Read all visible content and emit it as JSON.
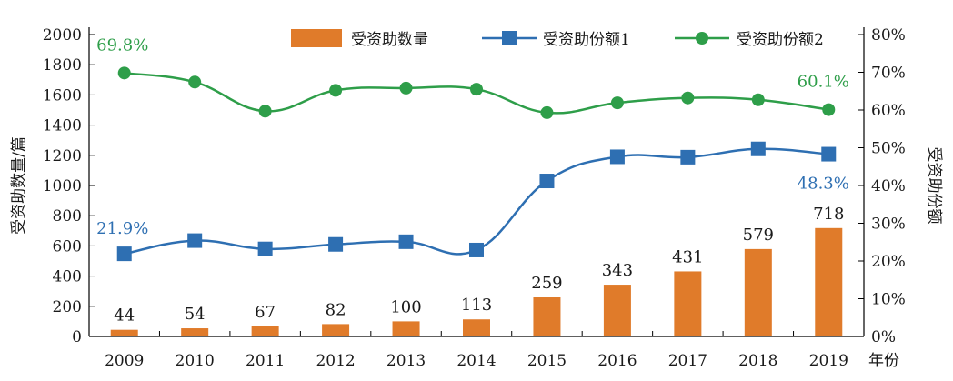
{
  "chart_data": {
    "type": "bar+line",
    "categories": [
      "2009",
      "2010",
      "2011",
      "2012",
      "2013",
      "2014",
      "2015",
      "2016",
      "2017",
      "2018",
      "2019"
    ],
    "x_unit_label": "年份",
    "bars": {
      "name": "受资助数量",
      "values": [
        44,
        54,
        67,
        82,
        100,
        113,
        259,
        343,
        431,
        579,
        718
      ],
      "data_labels": [
        "44",
        "54",
        "67",
        "82",
        "100",
        "113",
        "259",
        "343",
        "431",
        "579",
        "718"
      ],
      "color": "#e07b2a"
    },
    "lines": [
      {
        "name": "受资助份额1",
        "marker": "square",
        "color": "#2e6fb2",
        "values": [
          21.9,
          25.4,
          23.2,
          24.4,
          25.1,
          22.9,
          41.2,
          47.6,
          47.5,
          49.7,
          48.3
        ],
        "annotations": [
          {
            "index": 0,
            "text": "21.9%"
          },
          {
            "index": 10,
            "text": "48.3%"
          }
        ]
      },
      {
        "name": "受资助份额2",
        "marker": "circle",
        "color": "#2e9e49",
        "values": [
          69.8,
          67.4,
          59.7,
          65.2,
          65.8,
          65.5,
          59.3,
          61.9,
          63.2,
          62.7,
          60.1
        ],
        "annotations": [
          {
            "index": 0,
            "text": "69.8%"
          },
          {
            "index": 10,
            "text": "60.1%"
          }
        ]
      }
    ],
    "y_left": {
      "label": "受资助数量/篇",
      "range": [
        0,
        2000
      ],
      "ticks": [
        0,
        200,
        400,
        600,
        800,
        1000,
        1200,
        1400,
        1600,
        1800,
        2000
      ],
      "tick_labels": [
        "0",
        "200",
        "400",
        "600",
        "800",
        "1000",
        "1200",
        "1400",
        "1600",
        "1800",
        "2000"
      ]
    },
    "y_right": {
      "label": "受资助份额",
      "range": [
        0,
        80
      ],
      "ticks": [
        0,
        10,
        20,
        30,
        40,
        50,
        60,
        70,
        80
      ],
      "tick_labels": [
        "0%",
        "10%",
        "20%",
        "30%",
        "40%",
        "50%",
        "60%",
        "70%",
        "80%"
      ]
    },
    "grid": false,
    "legend_position": "top"
  }
}
